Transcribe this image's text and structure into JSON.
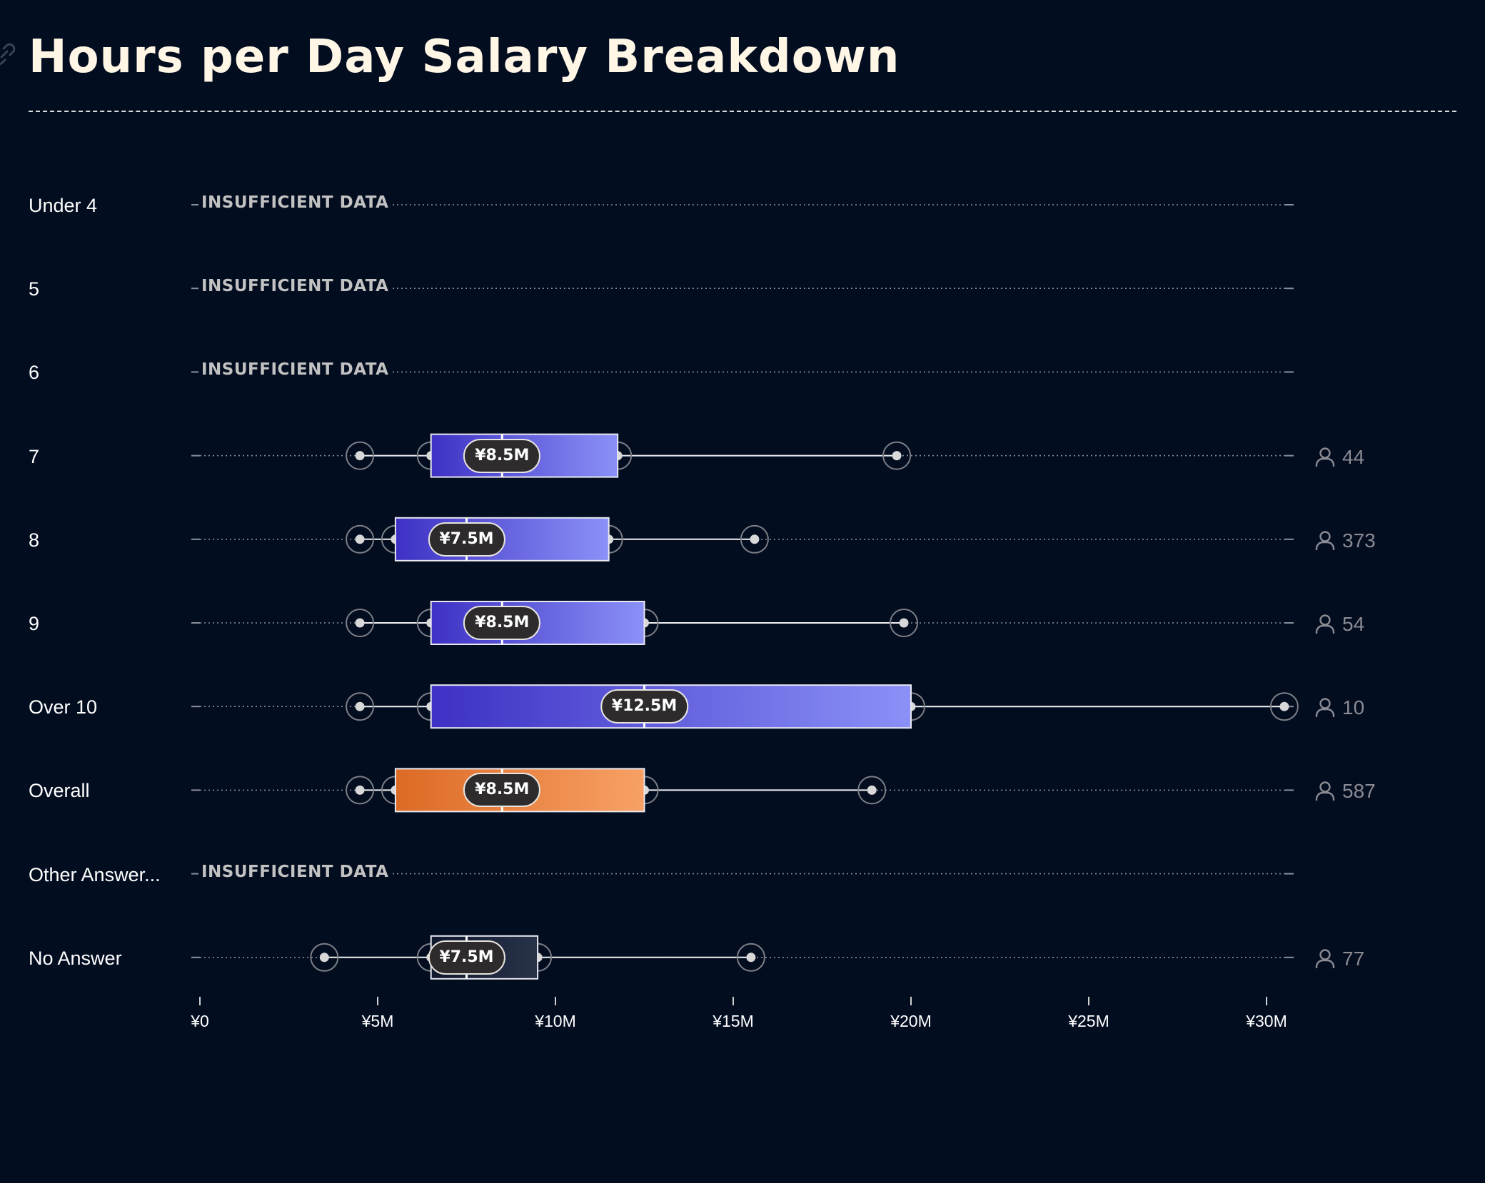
{
  "title": "Hours per Day Salary Breakdown",
  "insufficient_label": "INSUFFICIENT DATA",
  "colors": {
    "background": "#030d20",
    "purple_start": "#3d31c4",
    "purple_end": "#8b91f7",
    "orange_start": "#dc6a25",
    "orange_end": "#f8a165",
    "no_answer_start": "#10182e",
    "no_answer_end": "#283349"
  },
  "chart_data": {
    "type": "boxplot",
    "title": "Hours per Day Salary Breakdown",
    "orientation": "horizontal",
    "x_unit": "¥",
    "xlim": [
      0,
      30500000
    ],
    "ticks": [
      {
        "value": 0,
        "label": "¥0"
      },
      {
        "value": 5000000,
        "label": "¥5M"
      },
      {
        "value": 10000000,
        "label": "¥10M"
      },
      {
        "value": 15000000,
        "label": "¥15M"
      },
      {
        "value": 20000000,
        "label": "¥20M"
      },
      {
        "value": 25000000,
        "label": "¥25M"
      },
      {
        "value": 30000000,
        "label": "¥30M"
      }
    ],
    "rows": [
      {
        "label": "Under 4",
        "insufficient": true
      },
      {
        "label": "5",
        "insufficient": true
      },
      {
        "label": "6",
        "insufficient": true
      },
      {
        "label": "7",
        "insufficient": false,
        "style": "purple",
        "min": 4500000,
        "q1": 6500000,
        "median": 8500000,
        "q3": 11750000,
        "max": 19600000,
        "median_label": "¥8.5M",
        "count": "44"
      },
      {
        "label": "8",
        "insufficient": false,
        "style": "purple",
        "min": 4500000,
        "q1": 5500000,
        "median": 7500000,
        "q3": 11500000,
        "max": 15600000,
        "median_label": "¥7.5M",
        "count": "373"
      },
      {
        "label": "9",
        "insufficient": false,
        "style": "purple",
        "min": 4500000,
        "q1": 6500000,
        "median": 8500000,
        "q3": 12500000,
        "max": 19800000,
        "median_label": "¥8.5M",
        "count": "54"
      },
      {
        "label": "Over 10",
        "insufficient": false,
        "style": "purple",
        "min": 4500000,
        "q1": 6500000,
        "median": 12500000,
        "q3": 20000000,
        "max": 30500000,
        "median_label": "¥12.5M",
        "count": "10"
      },
      {
        "label": "Overall",
        "insufficient": false,
        "style": "orange",
        "min": 4500000,
        "q1": 5500000,
        "median": 8500000,
        "q3": 12500000,
        "max": 18900000,
        "median_label": "¥8.5M",
        "count": "587"
      },
      {
        "label": "Other Answer...",
        "insufficient": true
      },
      {
        "label": "No Answer",
        "insufficient": false,
        "style": "dark",
        "min": 3500000,
        "q1": 6500000,
        "median": 7500000,
        "q3": 9500000,
        "max": 15500000,
        "median_label": "¥7.5M",
        "count": "77"
      }
    ]
  }
}
